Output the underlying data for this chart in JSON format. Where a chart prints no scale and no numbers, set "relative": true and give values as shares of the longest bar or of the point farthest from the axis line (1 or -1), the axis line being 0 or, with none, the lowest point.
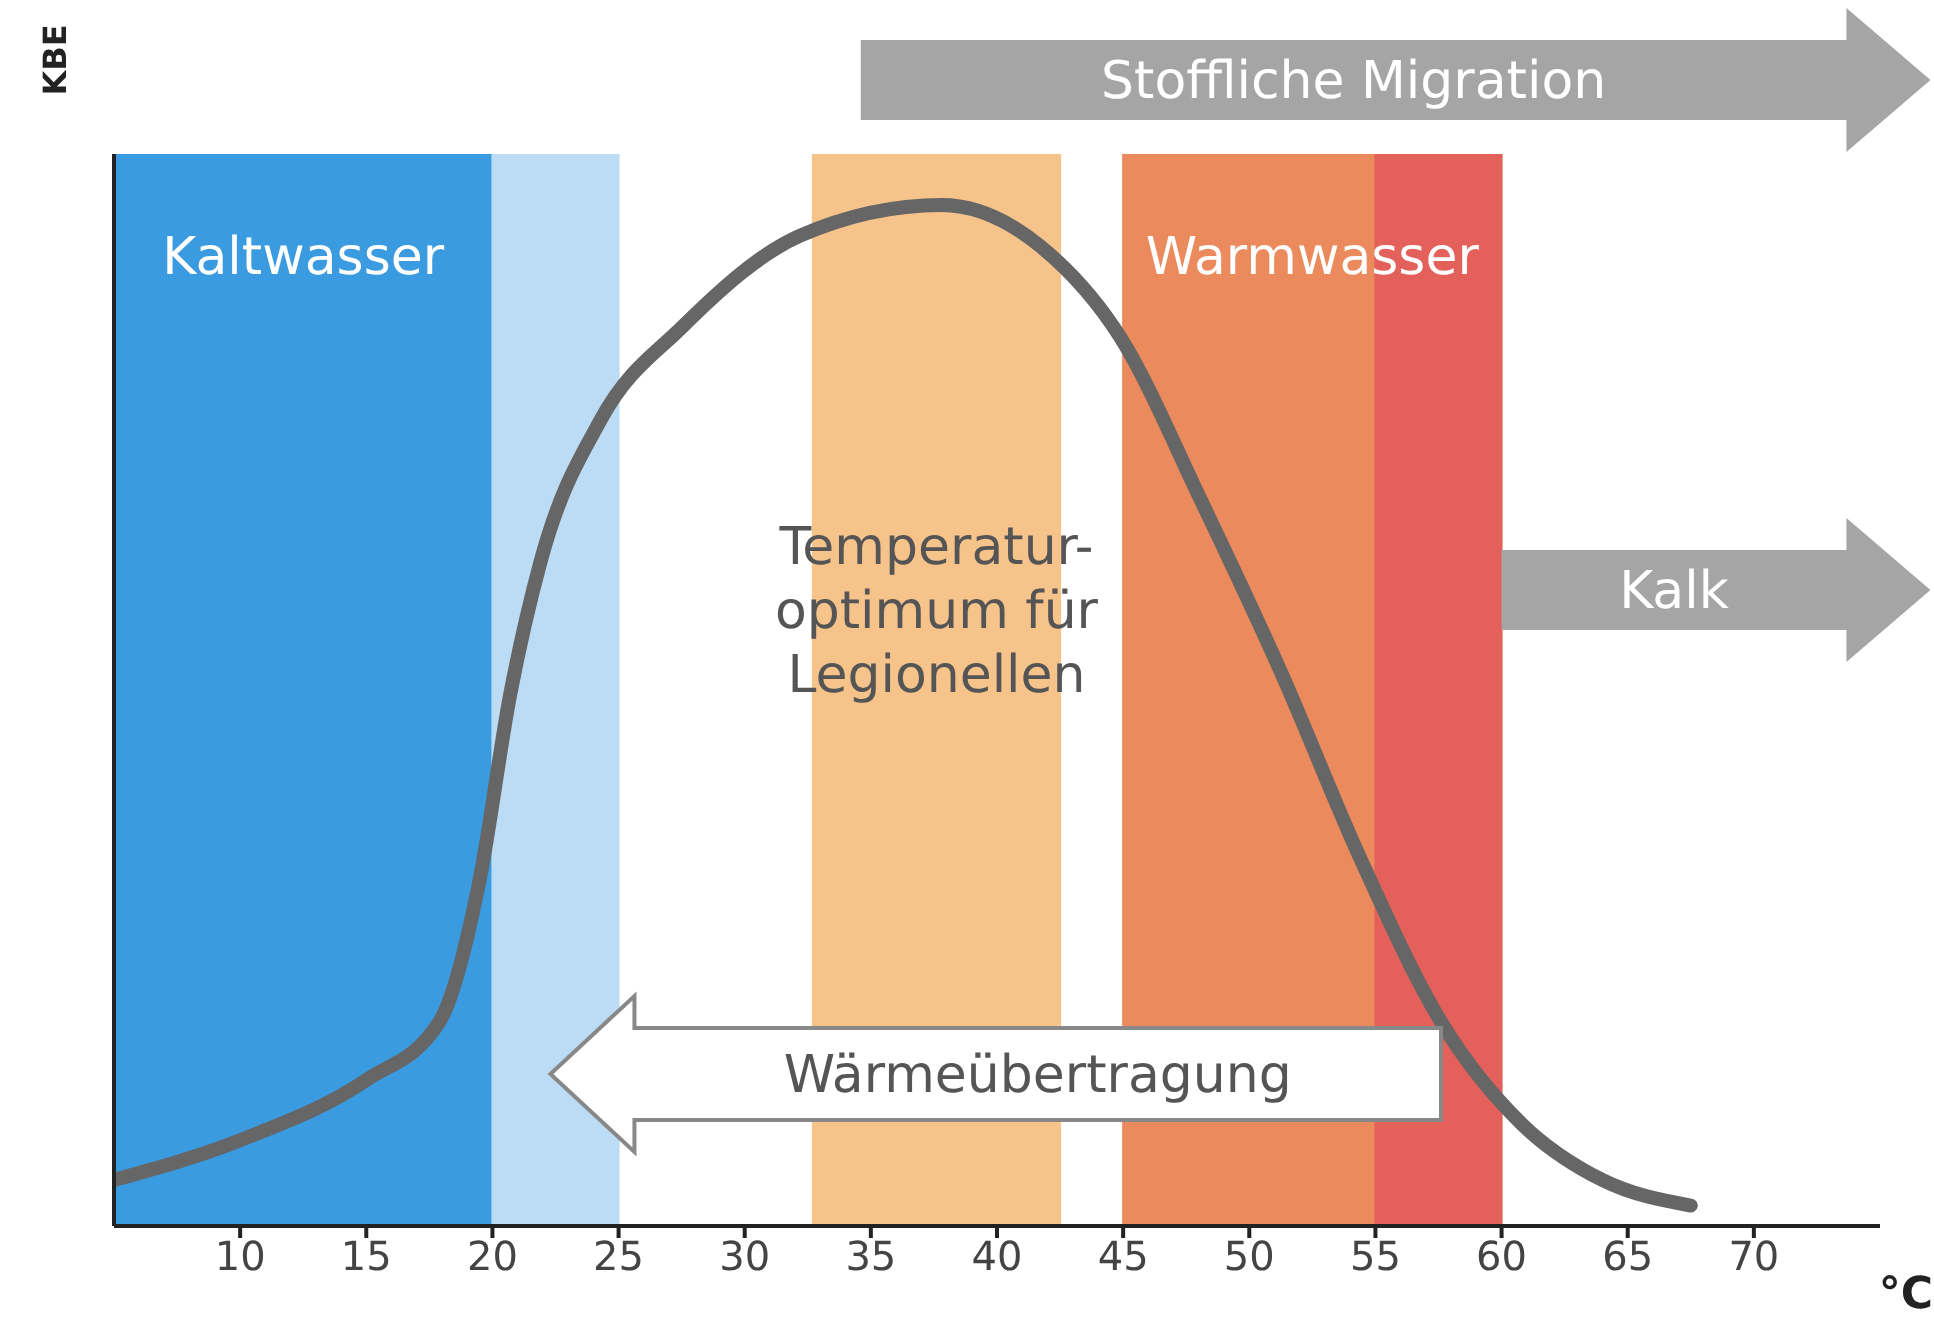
{
  "chart_data": {
    "type": "line",
    "relative": true,
    "xlabel": "°C",
    "ylabel": "KBE",
    "x": [
      5,
      10,
      15,
      17.9,
      19.5,
      20.7,
      21.9,
      24.3,
      27.5,
      32.2,
      37.8,
      41.7,
      44.9,
      48.1,
      51.3,
      54.4,
      57.6,
      60.8,
      64,
      67.5
    ],
    "series": [
      {
        "color": "#666666",
        "values": [
          0.045,
          0.084,
          0.143,
          0.2,
          0.34,
          0.52,
          0.65,
          0.79,
          0.88,
          0.97,
          1.0,
          0.96,
          0.87,
          0.71,
          0.54,
          0.36,
          0.2,
          0.1,
          0.045,
          0.02
        ]
      }
    ],
    "xlim": [
      5,
      75
    ],
    "xticks": [
      10,
      15,
      20,
      25,
      30,
      35,
      40,
      45,
      50,
      55,
      60,
      65,
      70
    ],
    "bands": [
      {
        "axis": "x",
        "from": 5,
        "to": 20,
        "label": "Kaltwasser",
        "color": "#3a9be0"
      },
      {
        "axis": "x",
        "from": 20,
        "to": 25,
        "color": "#bcdcf5"
      },
      {
        "axis": "x",
        "from": 32.7,
        "to": 42.5,
        "label": "Temperatur-\noptimum für\nLegionellen",
        "color": "#f6c48a"
      },
      {
        "axis": "x",
        "from": 45,
        "to": 55,
        "label": "Warmwasser",
        "color": "#eb8a5c"
      },
      {
        "axis": "x",
        "from": 55,
        "to": 60,
        "color": "#e4605a"
      }
    ],
    "annotations": [
      "Stoffliche Migration",
      "Wärmeübertragung",
      "Kalk"
    ],
    "grid": false,
    "legend": false
  }
}
